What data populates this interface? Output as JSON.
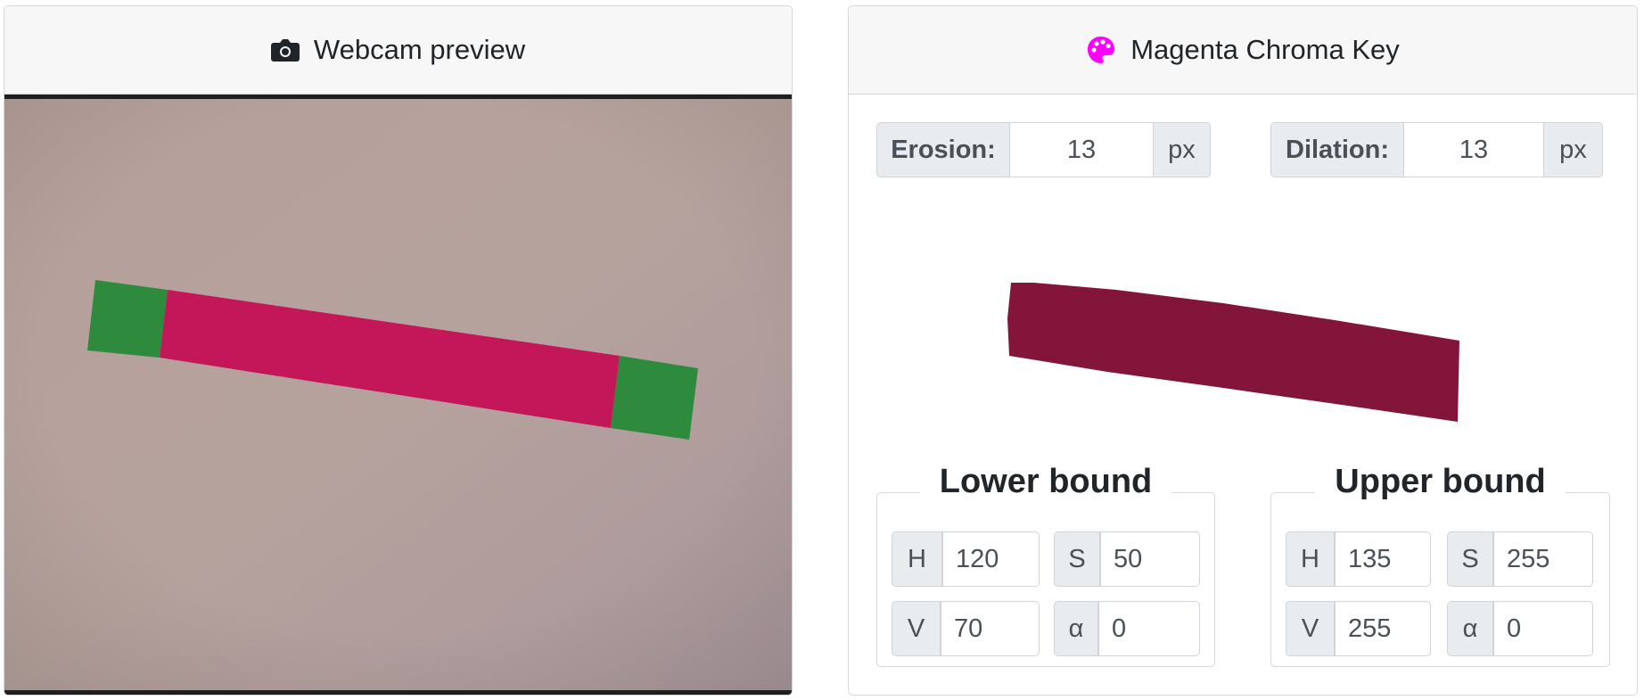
{
  "webcam_card": {
    "title": "Webcam preview",
    "icon": "camera-icon"
  },
  "chroma_card": {
    "title": "Magenta Chroma Key",
    "icon": "palette-icon",
    "icon_color": "#ff00ff"
  },
  "erosion": {
    "label": "Erosion:",
    "value": "13",
    "unit": "px"
  },
  "dilation": {
    "label": "Dilation:",
    "value": "13",
    "unit": "px"
  },
  "lower_bound": {
    "title": "Lower bound",
    "h": {
      "label": "H",
      "value": "120"
    },
    "s": {
      "label": "S",
      "value": "50"
    },
    "v": {
      "label": "V",
      "value": "70"
    },
    "a": {
      "label": "α",
      "value": "0"
    }
  },
  "upper_bound": {
    "title": "Upper bound",
    "h": {
      "label": "H",
      "value": "135"
    },
    "s": {
      "label": "S",
      "value": "255"
    },
    "v": {
      "label": "V",
      "value": "255"
    },
    "a": {
      "label": "α",
      "value": "0"
    }
  },
  "colors": {
    "magenta_strip": "#c8175a",
    "green_end": "#2f8f3e",
    "mask_strip": "#821535",
    "background_paper": "#b29e9b"
  }
}
